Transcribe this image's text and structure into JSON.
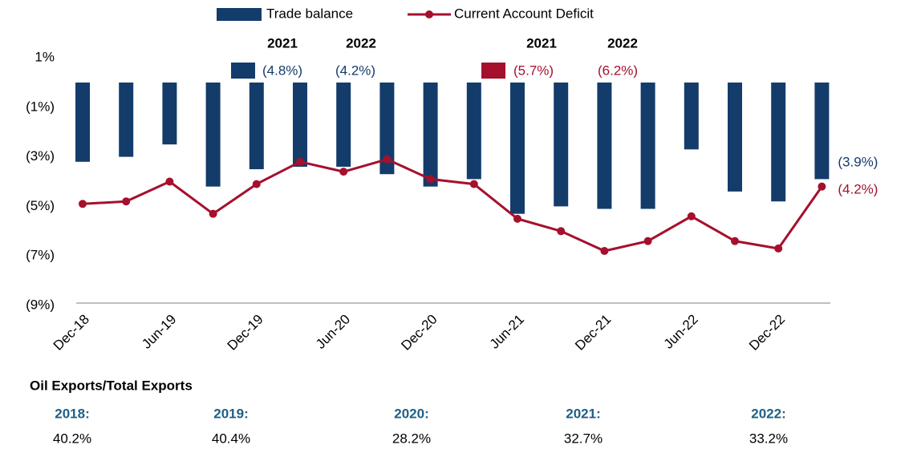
{
  "chart_data": {
    "type": "bar_line",
    "categories": [
      "Dec-18",
      null,
      "Jun-19",
      null,
      "Dec-19",
      null,
      "Jun-20",
      null,
      "Dec-20",
      null,
      "Jun-21",
      null,
      "Dec-21",
      null,
      "Jun-22",
      null,
      "Dec-22",
      null
    ],
    "series": [
      {
        "name": "Trade balance",
        "type": "bar",
        "color": "#133c6b",
        "values": [
          -3.2,
          -3.0,
          -2.5,
          -4.2,
          -3.5,
          -3.4,
          -3.4,
          -3.7,
          -4.2,
          -3.9,
          -5.3,
          -5.0,
          -5.1,
          -5.1,
          -2.7,
          -4.4,
          -4.8,
          -3.9
        ],
        "value_labels": [
          null,
          null,
          null,
          null,
          null,
          null,
          null,
          null,
          null,
          null,
          null,
          null,
          null,
          null,
          null,
          null,
          null,
          "(3.9%)"
        ]
      },
      {
        "name": "Current Account Deficit",
        "type": "line",
        "color": "#a5102d",
        "values": [
          -4.9,
          -4.8,
          -4.0,
          -5.3,
          -4.1,
          -3.2,
          -3.6,
          -3.1,
          -3.9,
          -4.1,
          -5.5,
          -6.0,
          -6.8,
          -6.4,
          -5.4,
          -6.4,
          -6.7,
          -4.2
        ],
        "value_labels": [
          null,
          null,
          null,
          null,
          null,
          null,
          null,
          null,
          null,
          null,
          null,
          null,
          null,
          null,
          null,
          null,
          null,
          "(4.2%)"
        ]
      }
    ],
    "ylim": [
      -9,
      1
    ],
    "yticks": [
      {
        "value": 1,
        "label": "1%"
      },
      {
        "value": -1,
        "label": "(1%)"
      },
      {
        "value": -3,
        "label": "(3%)"
      },
      {
        "value": -5,
        "label": "(5%)"
      },
      {
        "value": -7,
        "label": "(7%)"
      },
      {
        "value": -9,
        "label": "(9%)"
      }
    ],
    "annual": {
      "years": [
        "2021",
        "2022"
      ],
      "trade_balance": [
        "(4.8%)",
        "(4.2%)"
      ],
      "current_account": [
        "(5.7%)",
        "(6.2%)"
      ]
    },
    "footer": {
      "title": "Oil Exports/Total Exports",
      "items": [
        {
          "year": "2018:",
          "value": "40.2%"
        },
        {
          "year": "2019:",
          "value": "40.4%"
        },
        {
          "year": "2020:",
          "value": "28.2%"
        },
        {
          "year": "2021:",
          "value": "32.7%"
        },
        {
          "year": "2022:",
          "value": "33.2%"
        }
      ]
    }
  }
}
